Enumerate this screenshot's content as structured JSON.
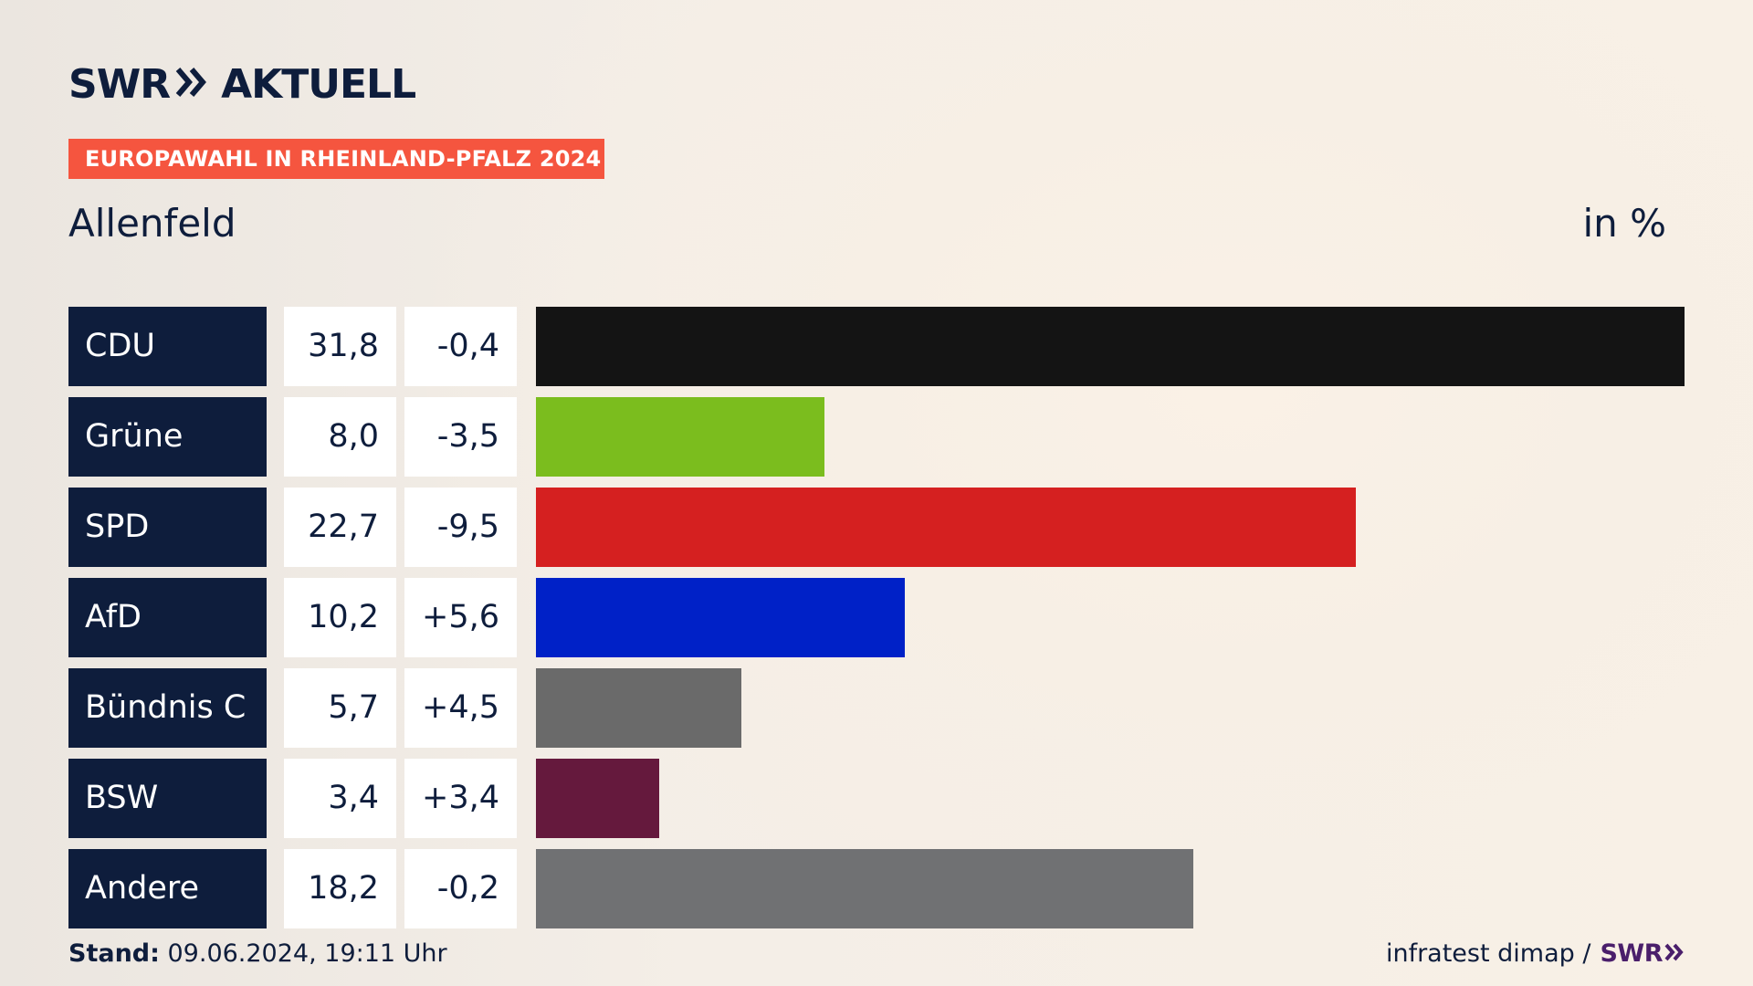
{
  "header": {
    "logo_swr": "SWR",
    "logo_name": "AKTUELL",
    "kicker": "EUROPAWAHL IN RHEINLAND-PFALZ 2024",
    "region": "Allenfeld",
    "unit": "in %"
  },
  "colors": {
    "navy": "#0e1d3c",
    "kicker": "#f5553f",
    "swr_purple": "#4a1e6b"
  },
  "chart_data": {
    "type": "bar",
    "orientation": "horizontal",
    "title": "Allenfeld",
    "unit": "in %",
    "categories": [
      "CDU",
      "Grüne",
      "SPD",
      "AfD",
      "Bündnis C",
      "BSW",
      "Andere"
    ],
    "values": [
      31.8,
      8.0,
      22.7,
      10.2,
      5.7,
      3.4,
      18.2
    ],
    "value_labels": [
      "31,8",
      "8,0",
      "22,7",
      "10,2",
      "5,7",
      "3,4",
      "18,2"
    ],
    "diff_labels": [
      "-0,4",
      "-3,5",
      "-9,5",
      "+5,6",
      "+4,5",
      "+3,4",
      "-0,2"
    ],
    "colors": [
      "#141414",
      "#7bbd1e",
      "#d52020",
      "#0021c7",
      "#6a6a6a",
      "#65193d",
      "#707173"
    ],
    "xlim": [
      0,
      31.8
    ],
    "grid": false,
    "legend": "none"
  },
  "footer": {
    "stand_label": "Stand:",
    "stand_value": " 09.06.2024, 19:11 Uhr",
    "source": "infratest dimap /",
    "source_logo": "SWR"
  }
}
